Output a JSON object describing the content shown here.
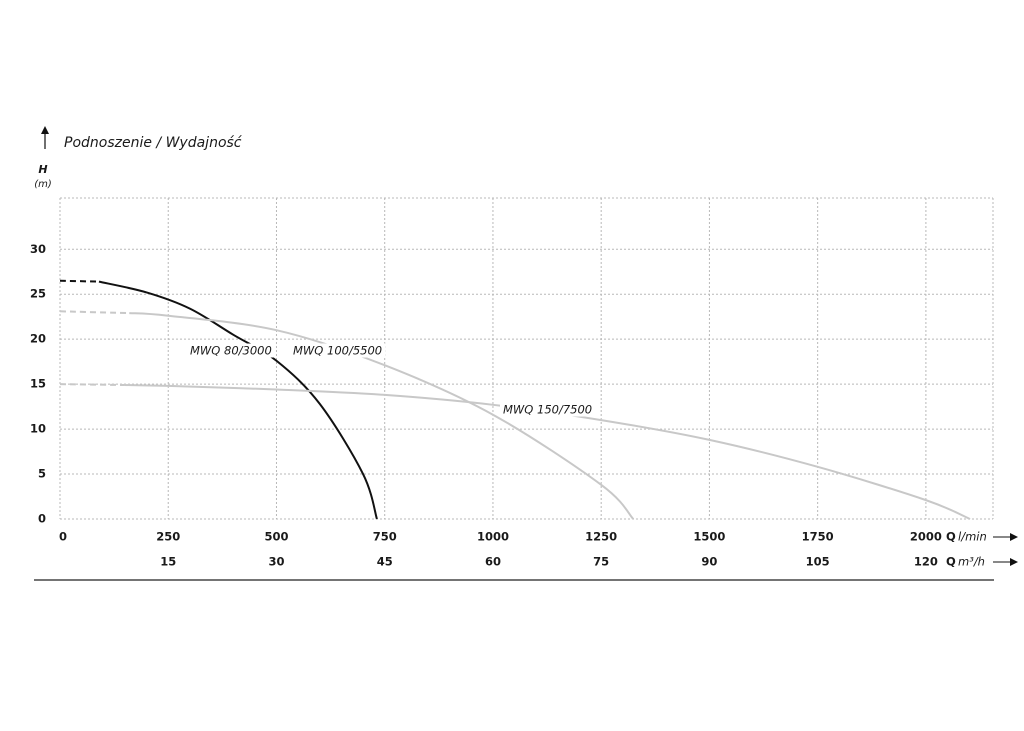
{
  "chart_data": {
    "type": "line",
    "title": "Podnoszenie / Wydajność",
    "y_symbol": "H",
    "y_unit": "(m)",
    "x_symbol": "Q",
    "x_unit": "l/min",
    "x2_symbol": "Q",
    "x2_unit": "m³/h",
    "xlim": [
      0,
      2155
    ],
    "xticks": [
      0,
      250,
      500,
      750,
      1000,
      1250,
      1500,
      1750,
      2000
    ],
    "x2lim": [
      0,
      129.3
    ],
    "x2ticks": [
      15,
      30,
      45,
      60,
      75,
      90,
      105,
      120
    ],
    "ylim": [
      0,
      35.7
    ],
    "yticks": [
      0,
      5,
      10,
      15,
      20,
      25,
      30
    ],
    "grid": true,
    "series": [
      {
        "name": "MWQ 80/3000",
        "color": "#111111",
        "dashed_to": 90,
        "x": [
          0,
          90,
          200,
          300,
          400,
          500,
          600,
          700,
          732
        ],
        "values": [
          26.5,
          26.4,
          25.2,
          23.4,
          20.5,
          17.6,
          12.8,
          5.0,
          0
        ]
      },
      {
        "name": "MWQ 100/5500",
        "color": "#c8c8c8",
        "dashed_to": 160,
        "x": [
          0,
          160,
          250,
          500,
          750,
          1000,
          1250,
          1324
        ],
        "values": [
          23.1,
          22.9,
          22.6,
          21.0,
          17.1,
          11.6,
          3.8,
          0
        ]
      },
      {
        "name": "MWQ 150/7500",
        "color": "#c8c8c8",
        "dashed_to": 150,
        "x": [
          0,
          150,
          250,
          500,
          750,
          1000,
          1250,
          1500,
          1750,
          2000,
          2102
        ],
        "values": [
          15.0,
          14.9,
          14.8,
          14.4,
          13.8,
          12.7,
          11.0,
          8.8,
          5.8,
          2.1,
          0
        ]
      }
    ]
  }
}
